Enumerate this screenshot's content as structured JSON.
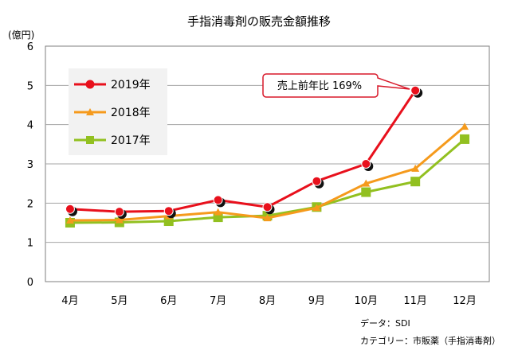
{
  "chart_data": {
    "type": "line",
    "title": "手指消毒剤の販売金額推移",
    "yunit": "(億円)",
    "categories": [
      "4月",
      "5月",
      "6月",
      "7月",
      "8月",
      "9月",
      "10月",
      "11月",
      "12月"
    ],
    "yticks": [
      "0",
      "1",
      "2",
      "3",
      "4",
      "5",
      "6"
    ],
    "ylim": [
      0,
      6
    ],
    "grid": true,
    "legend_placement": "top-left",
    "series": [
      {
        "name": "2019年",
        "color": "#e8101c",
        "marker": "circle",
        "values": [
          1.85,
          1.78,
          1.8,
          2.08,
          1.9,
          2.56,
          3.0,
          4.87,
          null
        ]
      },
      {
        "name": "2018年",
        "color": "#f59a1c",
        "marker": "triangle",
        "values": [
          1.56,
          1.57,
          1.67,
          1.77,
          1.62,
          1.88,
          2.5,
          2.88,
          3.95
        ]
      },
      {
        "name": "2017年",
        "color": "#92c020",
        "marker": "square",
        "values": [
          1.5,
          1.51,
          1.54,
          1.64,
          1.68,
          1.9,
          2.28,
          2.55,
          3.63
        ]
      }
    ],
    "annotation": "売上前年比 169%"
  },
  "footnotes": {
    "source": "データ：SDI",
    "category": "カテゴリー：市販薬（手指消毒剤）"
  }
}
